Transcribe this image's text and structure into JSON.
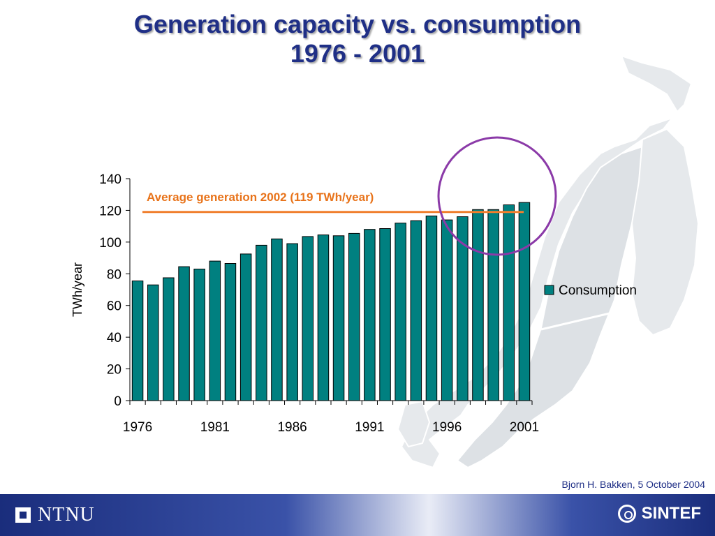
{
  "slide": {
    "title_line1": "Generation capacity vs. consumption",
    "title_line2": "1976 - 2001",
    "attribution": "Bjorn H. Bakken, 5 October 2004",
    "logo_left": "NTNU",
    "logo_right": "SINTEF"
  },
  "colors": {
    "bar_fill": "#008080",
    "reference_line": "#f07f2d",
    "annotation_text": "#e8731a",
    "highlight_circle": "#8b3aa8",
    "title": "#1f2f86"
  },
  "chart_data": {
    "type": "bar",
    "ylabel": "TWh/year",
    "xlabel": "",
    "ylim": [
      0,
      140
    ],
    "yticks": [
      0,
      20,
      40,
      60,
      80,
      100,
      120,
      140
    ],
    "xtick_labels": [
      "1976",
      "1981",
      "1986",
      "1991",
      "1996",
      "2001"
    ],
    "categories": [
      "1976",
      "1977",
      "1978",
      "1979",
      "1980",
      "1981",
      "1982",
      "1983",
      "1984",
      "1985",
      "1986",
      "1987",
      "1988",
      "1989",
      "1990",
      "1991",
      "1992",
      "1993",
      "1994",
      "1995",
      "1996",
      "1997",
      "1998",
      "1999",
      "2000",
      "2001"
    ],
    "series": [
      {
        "name": "Consumption",
        "values": [
          75.5,
          73,
          77.5,
          84.5,
          83,
          88,
          86.5,
          92.5,
          98,
          102,
          99,
          103.5,
          104.5,
          104,
          105.5,
          108,
          108.5,
          112,
          113.5,
          116.5,
          114,
          116,
          120.5,
          120.5,
          123.5,
          125
        ]
      }
    ],
    "reference_line": {
      "value": 119,
      "label": "Average generation 2002 (119 TWh/year)"
    },
    "legend": {
      "position": "right",
      "entries": [
        "Consumption"
      ]
    },
    "grid": false
  }
}
